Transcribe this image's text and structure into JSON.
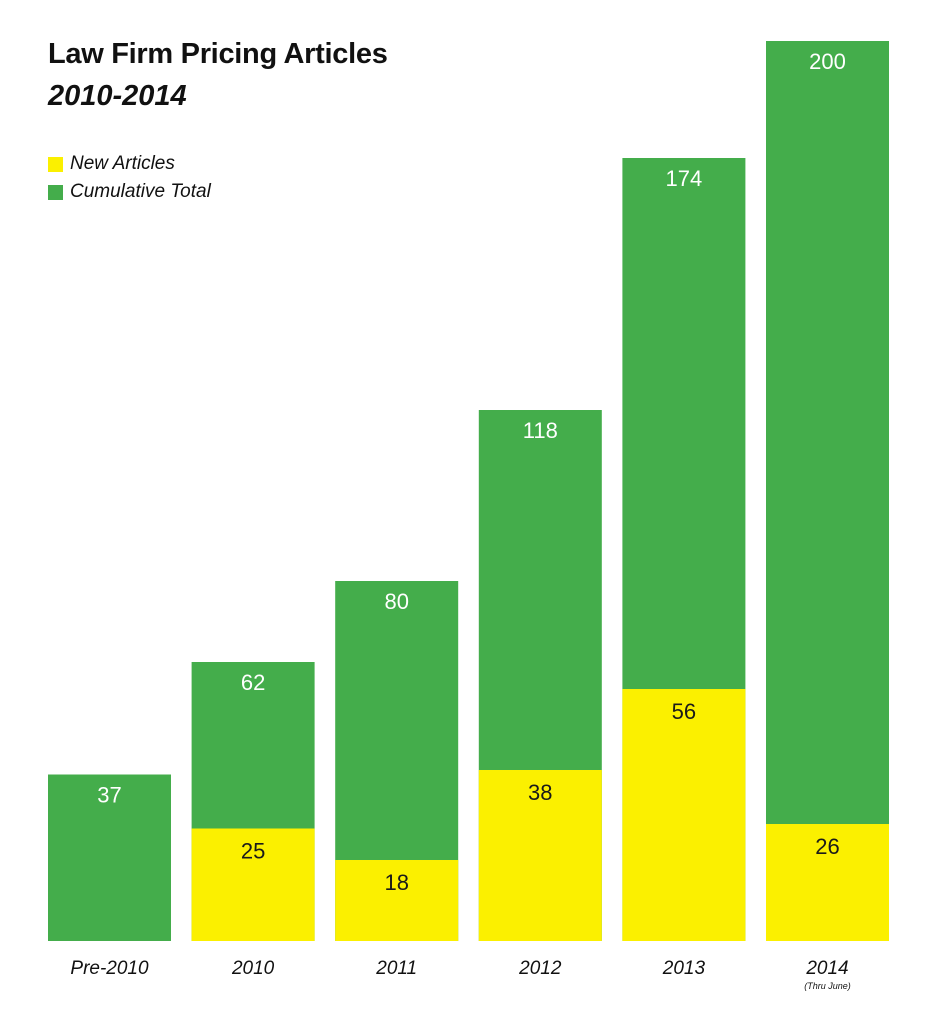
{
  "colors": {
    "cumulative": "#44ad4b",
    "new": "#fbf000",
    "cumulative_label": "#ffffff",
    "new_label": "#1a1a1a"
  },
  "chart_data": {
    "type": "bar",
    "stacked": false,
    "title": "Law Firm Pricing Articles",
    "subtitle": "2010-2014",
    "categories": [
      "Pre-2010",
      "2010",
      "2011",
      "2012",
      "2013",
      "2014"
    ],
    "category_notes": [
      "",
      "",
      "",
      "",
      "",
      "(Thru June)"
    ],
    "series": [
      {
        "name": "New Articles",
        "values": [
          null,
          25,
          18,
          38,
          56,
          26
        ]
      },
      {
        "name": "Cumulative Total",
        "values": [
          37,
          62,
          80,
          118,
          174,
          200
        ]
      }
    ],
    "legend_position": "top-left",
    "grid": false,
    "ylim": [
      0,
      200
    ],
    "xlabel": "",
    "ylabel": ""
  }
}
